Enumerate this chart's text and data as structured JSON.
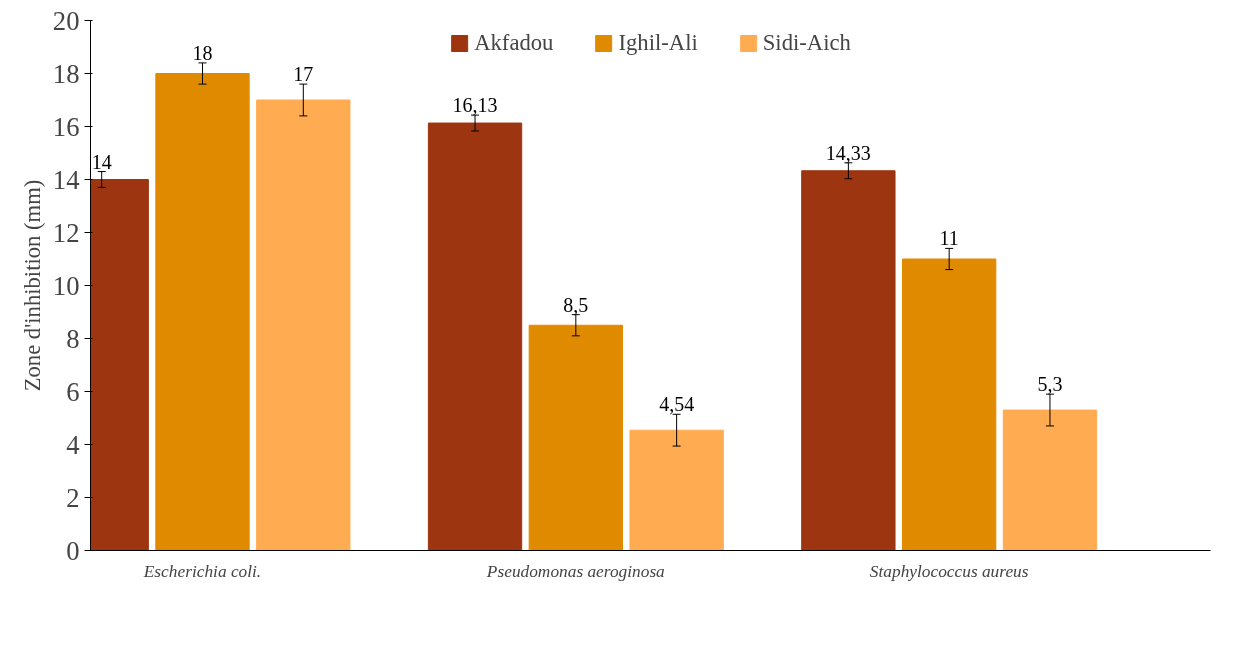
{
  "chart_data": {
    "type": "bar",
    "ylabel": "Zone d'inhibition (mm)",
    "categories": [
      "Escherichia coli.",
      "Pseudomonas aeroginosa",
      "Staphylococcus aureus"
    ],
    "series": [
      {
        "name": "Akfadou",
        "color": "#9c3510",
        "values": [
          14,
          16.13,
          14.33
        ],
        "errors": [
          0.3,
          0.3,
          0.3
        ],
        "value_labels": [
          "14",
          "16,13",
          "14,33"
        ]
      },
      {
        "name": "Ighil-Ali",
        "color": "#e08a00",
        "values": [
          18,
          8.5,
          11
        ],
        "errors": [
          0.4,
          0.4,
          0.4
        ],
        "value_labels": [
          "18",
          "8,5",
          "11"
        ]
      },
      {
        "name": "Sidi-Aich",
        "color": "#ffab52",
        "values": [
          17,
          4.54,
          5.3
        ],
        "errors": [
          0.6,
          0.6,
          0.6
        ],
        "value_labels": [
          "17",
          "4,54",
          "5,3"
        ]
      }
    ],
    "ylim": [
      0,
      20
    ],
    "yticks": [
      0,
      2,
      4,
      6,
      8,
      10,
      12,
      14,
      16,
      18,
      20
    ],
    "grid": false,
    "legend": "top"
  }
}
